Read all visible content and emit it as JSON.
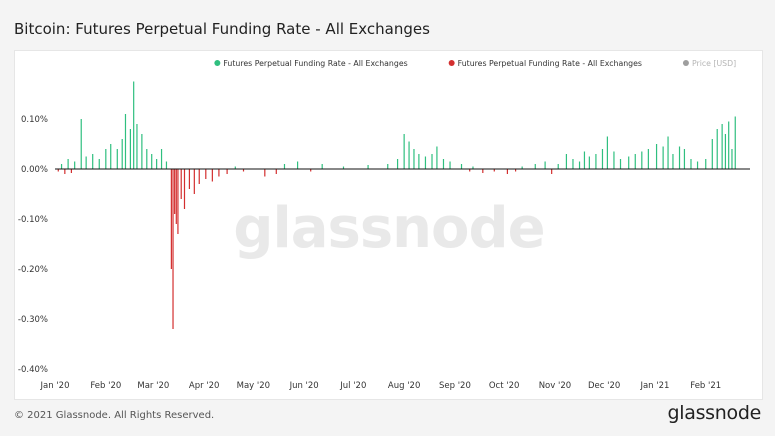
{
  "page": {
    "title": "Bitcoin: Futures Perpetual Funding Rate - All Exchanges",
    "copyright": "© 2021 Glassnode. All Rights Reserved.",
    "logo": "glassnode",
    "watermark": "glassnode"
  },
  "chart_data": {
    "type": "bar",
    "title": "Bitcoin: Futures Perpetual Funding Rate - All Exchanges",
    "xlabel": "",
    "ylabel": "",
    "x_range": [
      "2020-01-01",
      "2021-02-28"
    ],
    "ylim": [
      -0.4,
      0.2
    ],
    "y_ticks": [
      0.1,
      0.0,
      -0.1,
      -0.2,
      -0.3,
      -0.4
    ],
    "y_tick_labels": [
      "0.10%",
      "0.00%",
      "-0.10%",
      "-0.20%",
      "-0.30%",
      "-0.40%"
    ],
    "x_ticks": [
      "2020-01-01",
      "2020-02-01",
      "2020-03-01",
      "2020-04-01",
      "2020-05-01",
      "2020-06-01",
      "2020-07-01",
      "2020-08-01",
      "2020-09-01",
      "2020-10-01",
      "2020-11-01",
      "2020-12-01",
      "2021-01-01",
      "2021-02-01"
    ],
    "x_tick_labels": [
      "Jan '20",
      "Feb '20",
      "Mar '20",
      "Apr '20",
      "May '20",
      "Jun '20",
      "Jul '20",
      "Aug '20",
      "Sep '20",
      "Oct '20",
      "Nov '20",
      "Dec '20",
      "Jan '21",
      "Feb '21"
    ],
    "grid": false,
    "legend_position": "top-right",
    "legend": [
      {
        "label": "Futures Perpetual Funding Rate - All Exchanges",
        "color": "#2fbf7f"
      },
      {
        "label": "Futures Perpetual Funding Rate - All Exchanges",
        "color": "#d32f2f"
      },
      {
        "label": "Price [USD]",
        "color": "#9e9e9e"
      }
    ],
    "colors": {
      "positive": "#2fbf7f",
      "negative": "#d32f2f",
      "baseline": "#111111"
    },
    "series": [
      {
        "name": "Futures Perpetual Funding Rate - All Exchanges",
        "points": [
          [
            "2020-01-05",
            0.01
          ],
          [
            "2020-01-09",
            0.02
          ],
          [
            "2020-01-13",
            0.015
          ],
          [
            "2020-01-17",
            0.1
          ],
          [
            "2020-01-20",
            0.025
          ],
          [
            "2020-01-24",
            0.03
          ],
          [
            "2020-01-28",
            0.02
          ],
          [
            "2020-02-01",
            0.04
          ],
          [
            "2020-02-04",
            0.05
          ],
          [
            "2020-02-08",
            0.04
          ],
          [
            "2020-02-11",
            0.06
          ],
          [
            "2020-02-13",
            0.11
          ],
          [
            "2020-02-16",
            0.08
          ],
          [
            "2020-02-18",
            0.175
          ],
          [
            "2020-02-20",
            0.09
          ],
          [
            "2020-02-23",
            0.07
          ],
          [
            "2020-02-26",
            0.04
          ],
          [
            "2020-02-29",
            0.03
          ],
          [
            "2020-03-03",
            0.02
          ],
          [
            "2020-03-06",
            0.04
          ],
          [
            "2020-03-09",
            0.015
          ],
          [
            "2020-04-20",
            0.005
          ],
          [
            "2020-05-20",
            0.01
          ],
          [
            "2020-05-28",
            0.015
          ],
          [
            "2020-06-12",
            0.01
          ],
          [
            "2020-06-25",
            0.005
          ],
          [
            "2020-07-10",
            0.008
          ],
          [
            "2020-07-22",
            0.01
          ],
          [
            "2020-07-28",
            0.02
          ],
          [
            "2020-08-01",
            0.07
          ],
          [
            "2020-08-04",
            0.055
          ],
          [
            "2020-08-07",
            0.04
          ],
          [
            "2020-08-10",
            0.03
          ],
          [
            "2020-08-14",
            0.025
          ],
          [
            "2020-08-18",
            0.03
          ],
          [
            "2020-08-21",
            0.045
          ],
          [
            "2020-08-25",
            0.02
          ],
          [
            "2020-08-29",
            0.015
          ],
          [
            "2020-09-05",
            0.01
          ],
          [
            "2020-09-12",
            0.005
          ],
          [
            "2020-10-12",
            0.005
          ],
          [
            "2020-10-20",
            0.01
          ],
          [
            "2020-10-26",
            0.015
          ],
          [
            "2020-11-03",
            0.01
          ],
          [
            "2020-11-08",
            0.03
          ],
          [
            "2020-11-12",
            0.02
          ],
          [
            "2020-11-16",
            0.015
          ],
          [
            "2020-11-19",
            0.035
          ],
          [
            "2020-11-22",
            0.025
          ],
          [
            "2020-11-26",
            0.03
          ],
          [
            "2020-11-30",
            0.04
          ],
          [
            "2020-12-03",
            0.065
          ],
          [
            "2020-12-07",
            0.035
          ],
          [
            "2020-12-11",
            0.02
          ],
          [
            "2020-12-16",
            0.025
          ],
          [
            "2020-12-20",
            0.03
          ],
          [
            "2020-12-24",
            0.035
          ],
          [
            "2020-12-28",
            0.04
          ],
          [
            "2021-01-02",
            0.05
          ],
          [
            "2021-01-06",
            0.045
          ],
          [
            "2021-01-09",
            0.065
          ],
          [
            "2021-01-12",
            0.03
          ],
          [
            "2021-01-16",
            0.045
          ],
          [
            "2021-01-19",
            0.04
          ],
          [
            "2021-01-23",
            0.02
          ],
          [
            "2021-01-27",
            0.015
          ],
          [
            "2021-02-01",
            0.02
          ],
          [
            "2021-02-05",
            0.06
          ],
          [
            "2021-02-08",
            0.08
          ],
          [
            "2021-02-11",
            0.09
          ],
          [
            "2021-02-13",
            0.07
          ],
          [
            "2021-02-15",
            0.095
          ],
          [
            "2021-02-17",
            0.04
          ],
          [
            "2021-02-19",
            0.105
          ]
        ]
      },
      {
        "name": "Futures Perpetual Funding Rate - All Exchanges",
        "points": [
          [
            "2020-01-03",
            -0.005
          ],
          [
            "2020-01-07",
            -0.01
          ],
          [
            "2020-01-11",
            -0.008
          ],
          [
            "2020-03-12",
            -0.2
          ],
          [
            "2020-03-13",
            -0.32
          ],
          [
            "2020-03-14",
            -0.09
          ],
          [
            "2020-03-15",
            -0.11
          ],
          [
            "2020-03-16",
            -0.13
          ],
          [
            "2020-03-18",
            -0.06
          ],
          [
            "2020-03-20",
            -0.08
          ],
          [
            "2020-03-23",
            -0.04
          ],
          [
            "2020-03-26",
            -0.05
          ],
          [
            "2020-03-29",
            -0.03
          ],
          [
            "2020-04-02",
            -0.02
          ],
          [
            "2020-04-06",
            -0.025
          ],
          [
            "2020-04-10",
            -0.015
          ],
          [
            "2020-04-15",
            -0.01
          ],
          [
            "2020-04-25",
            -0.005
          ],
          [
            "2020-05-08",
            -0.015
          ],
          [
            "2020-05-15",
            -0.01
          ],
          [
            "2020-06-05",
            -0.005
          ],
          [
            "2020-09-10",
            -0.005
          ],
          [
            "2020-09-18",
            -0.008
          ],
          [
            "2020-09-25",
            -0.005
          ],
          [
            "2020-10-03",
            -0.01
          ],
          [
            "2020-10-08",
            -0.005
          ],
          [
            "2020-10-30",
            -0.01
          ]
        ]
      }
    ]
  }
}
